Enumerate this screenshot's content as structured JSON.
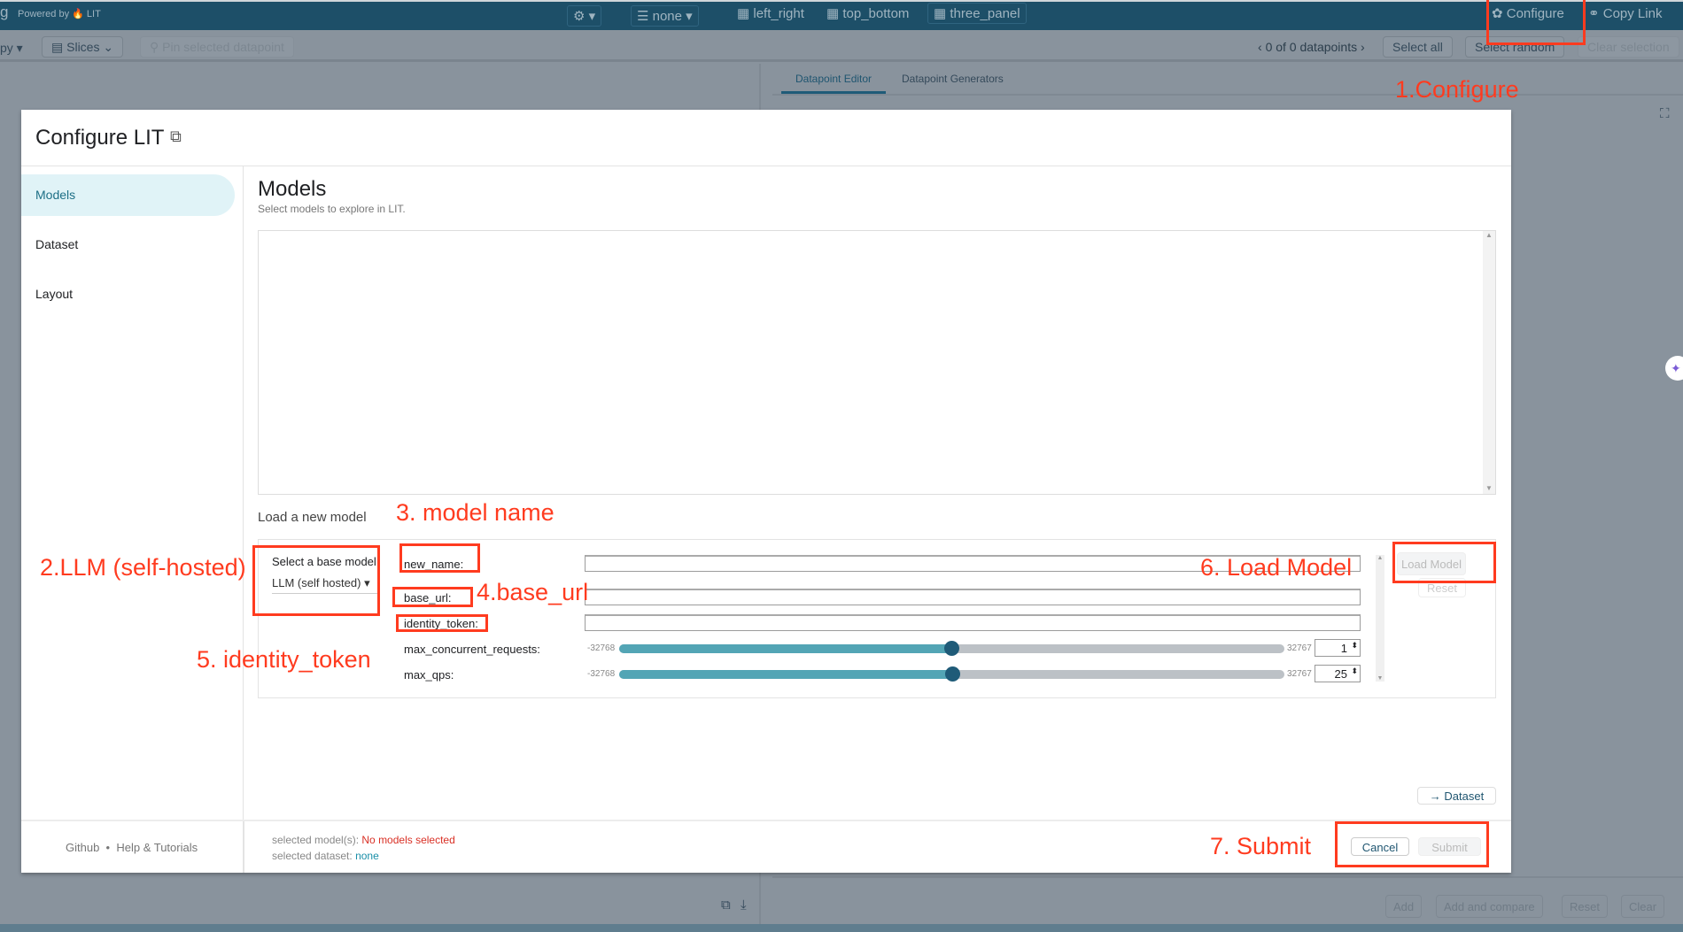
{
  "topbar": {
    "app_fragment": "g",
    "powered_by": "Powered by",
    "lit": "LIT",
    "model_icon": "robot-icon",
    "none": "none",
    "layouts": [
      "left_right",
      "top_bottom",
      "three_panel"
    ],
    "configure": "Configure",
    "copy_link": "Copy Link"
  },
  "toolbar": {
    "fragment": "py",
    "slices": "Slices",
    "pin": "Pin selected datapoint",
    "datapoints": "0 of 0 datapoints",
    "select_all": "Select all",
    "select_random": "Select random",
    "clear_selection": "Clear selection"
  },
  "right_panel": {
    "tabs": [
      "Datapoint Editor",
      "Datapoint Generators"
    ],
    "buttons": [
      "Add",
      "Add and compare",
      "Reset",
      "Clear"
    ]
  },
  "modal": {
    "title": "Configure LIT",
    "sidebar": [
      "Models",
      "Dataset",
      "Layout"
    ],
    "heading": "Models",
    "subtitle": "Select models to explore in LIT.",
    "load_new": "Load a new model",
    "select_base": "Select a base model",
    "base_model_value": "LLM (self hosted)",
    "fields": [
      {
        "label": "new_name:",
        "value": ""
      },
      {
        "label": "base_url:",
        "value": ""
      },
      {
        "label": "identity_token:",
        "value": ""
      }
    ],
    "sliders": [
      {
        "label": "max_concurrent_requests:",
        "min": "-32768",
        "max": "32767",
        "value": "1"
      },
      {
        "label": "max_qps:",
        "min": "-32768",
        "max": "32767",
        "value": "25"
      }
    ],
    "load_model": "Load Model",
    "reset": "Reset",
    "dataset_next": "→ Dataset",
    "footer": {
      "github": "Github",
      "sep": "•",
      "help": "Help & Tutorials",
      "models_label": "selected model(s):",
      "models_value": "No models selected",
      "dataset_label": "selected dataset:",
      "dataset_value": "none",
      "cancel": "Cancel",
      "submit": "Submit"
    }
  },
  "annotations": [
    "1.Configure",
    "2.LLM (self-hosted)",
    "3. model name",
    "4.base_url",
    "5. identity_token",
    "6. Load Model",
    "7. Submit"
  ],
  "colors": {
    "annotation": "#ff3b1f",
    "brand": "#1d4f68",
    "accent": "#53a5b5",
    "error": "#d93025"
  }
}
